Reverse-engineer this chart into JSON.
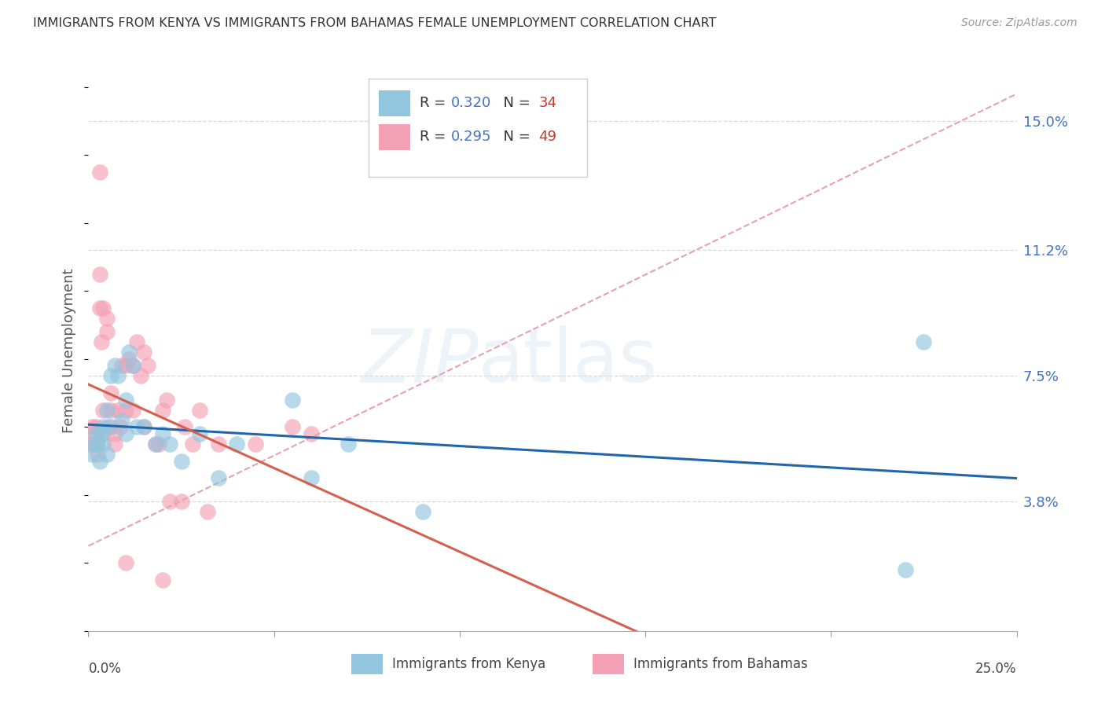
{
  "title": "IMMIGRANTS FROM KENYA VS IMMIGRANTS FROM BAHAMAS FEMALE UNEMPLOYMENT CORRELATION CHART",
  "source": "Source: ZipAtlas.com",
  "ylabel": "Female Unemployment",
  "ytick_vals": [
    3.8,
    7.5,
    11.2,
    15.0
  ],
  "xlim": [
    0,
    25
  ],
  "ylim": [
    0,
    16.5
  ],
  "color_kenya": "#92c5de",
  "color_bahamas": "#f4a0b5",
  "color_kenya_line": "#2166ac",
  "color_bahamas_line": "#d6604d",
  "color_dashed": "#e8a0b0",
  "r_kenya": "0.320",
  "n_kenya": "34",
  "r_bahamas": "0.295",
  "n_bahamas": "49",
  "kenya_x": [
    0.1,
    0.15,
    0.2,
    0.25,
    0.3,
    0.35,
    0.4,
    0.4,
    0.5,
    0.5,
    0.6,
    0.6,
    0.7,
    0.8,
    0.9,
    1.0,
    1.0,
    1.1,
    1.2,
    1.3,
    1.5,
    1.8,
    2.0,
    2.2,
    2.5,
    3.0,
    3.5,
    4.0,
    5.5,
    6.0,
    7.0,
    9.0,
    22.0,
    22.5
  ],
  "kenya_y": [
    5.2,
    5.5,
    5.8,
    5.5,
    5.0,
    5.8,
    6.0,
    5.5,
    5.2,
    6.5,
    7.5,
    6.0,
    7.8,
    7.5,
    6.2,
    5.8,
    6.8,
    8.2,
    7.8,
    6.0,
    6.0,
    5.5,
    5.8,
    5.5,
    5.0,
    5.8,
    4.5,
    5.5,
    6.8,
    4.5,
    5.5,
    3.5,
    1.8,
    8.5
  ],
  "bahamas_x": [
    0.05,
    0.1,
    0.15,
    0.2,
    0.2,
    0.25,
    0.3,
    0.3,
    0.35,
    0.4,
    0.4,
    0.5,
    0.5,
    0.55,
    0.6,
    0.6,
    0.7,
    0.7,
    0.8,
    0.85,
    0.9,
    1.0,
    1.0,
    1.1,
    1.2,
    1.2,
    1.3,
    1.4,
    1.5,
    1.5,
    1.6,
    1.8,
    1.9,
    2.0,
    2.1,
    2.2,
    2.5,
    2.6,
    2.8,
    3.0,
    3.2,
    3.5,
    4.5,
    5.5,
    6.0,
    0.3,
    0.4,
    1.0,
    2.0
  ],
  "bahamas_y": [
    5.5,
    6.0,
    5.8,
    5.5,
    6.0,
    5.2,
    9.5,
    10.5,
    8.5,
    6.5,
    5.8,
    8.8,
    9.2,
    6.0,
    6.5,
    7.0,
    5.5,
    5.8,
    6.5,
    6.0,
    7.8,
    7.8,
    6.5,
    8.0,
    6.5,
    7.8,
    8.5,
    7.5,
    8.2,
    6.0,
    7.8,
    5.5,
    5.5,
    6.5,
    6.8,
    3.8,
    3.8,
    6.0,
    5.5,
    6.5,
    3.5,
    5.5,
    5.5,
    6.0,
    5.8,
    13.5,
    9.5,
    2.0,
    1.5
  ]
}
